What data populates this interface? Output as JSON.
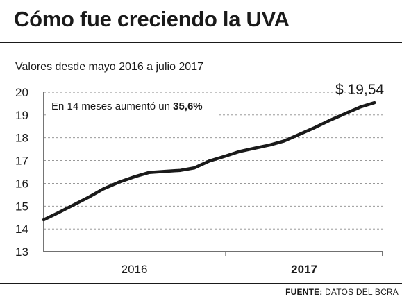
{
  "title": "Cómo fue creciendo la UVA",
  "subtitle": "Valores desde mayo 2016 a julio 2017",
  "source": {
    "label": "FUENTE:",
    "text": "DATOS DEL BCRA"
  },
  "colors": {
    "ink": "#1a1a1a",
    "grid": "#8a8a8a",
    "background": "#ffffff"
  },
  "chart_data": {
    "type": "line",
    "title": "Cómo fue creciendo la UVA",
    "subtitle": "Valores desde mayo 2016 a julio 2017",
    "xlabel": "",
    "ylabel": "",
    "ylim": [
      13,
      20
    ],
    "y_ticks": [
      13,
      14,
      15,
      16,
      17,
      18,
      19,
      20
    ],
    "y_tick_labels": [
      "13",
      "14",
      "15",
      "16",
      "17",
      "18",
      "19",
      "20"
    ],
    "x_range": [
      "2016-05-01",
      "2017-07-31"
    ],
    "x_period_labels": [
      {
        "label": "2016",
        "bold": false,
        "from": "2016-05-01",
        "to": "2016-12-31"
      },
      {
        "label": "2017",
        "bold": true,
        "from": "2017-01-01",
        "to": "2017-07-31"
      }
    ],
    "x_period_ticks": [
      "2017-01-01",
      "2017-07-31"
    ],
    "grid": "horizontal dashed",
    "series": [
      {
        "x": [
          "2016-05-01",
          "2016-05-20",
          "2016-06-10",
          "2016-07-01",
          "2016-07-20",
          "2016-08-10",
          "2016-09-01",
          "2016-09-20",
          "2016-10-10",
          "2016-11-01",
          "2016-11-20",
          "2016-12-10",
          "2017-01-01",
          "2017-01-20",
          "2017-02-10",
          "2017-03-01",
          "2017-03-20",
          "2017-04-10",
          "2017-05-01",
          "2017-05-20",
          "2017-06-10",
          "2017-07-01",
          "2017-07-20"
        ],
        "values": [
          14.4,
          14.7,
          15.05,
          15.4,
          15.75,
          16.05,
          16.3,
          16.48,
          16.52,
          16.57,
          16.68,
          16.98,
          17.2,
          17.4,
          17.55,
          17.68,
          17.85,
          18.15,
          18.45,
          18.75,
          19.05,
          19.35,
          19.54
        ]
      }
    ],
    "annotations": [
      {
        "text": "En 14 meses aumentó un ",
        "emphasis": "35,6%",
        "position": "top-left"
      },
      {
        "text": "$ 19,54",
        "position": "end of line"
      }
    ]
  }
}
